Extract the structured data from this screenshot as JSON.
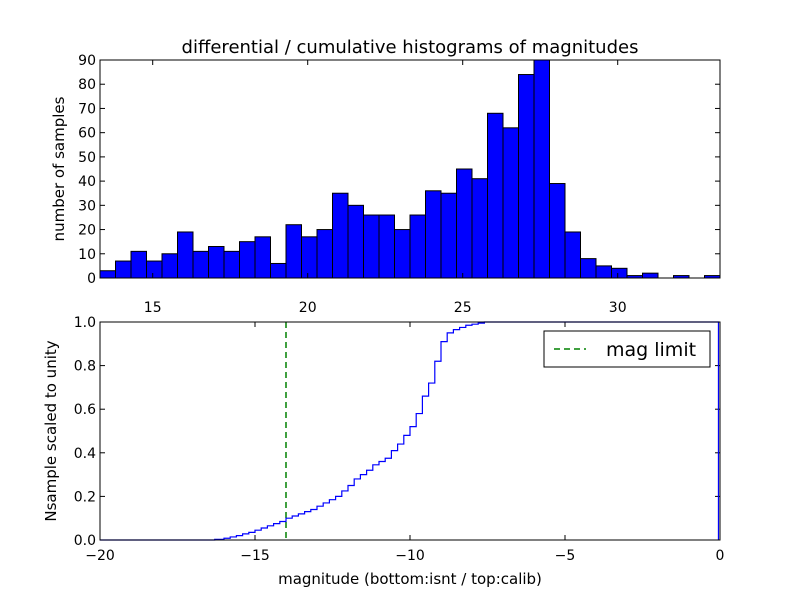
{
  "chart_data": [
    {
      "type": "bar",
      "title": "differential / cumulative histograms of magnitudes",
      "ylabel": "number of samples",
      "xlim": [
        13.3,
        33.3
      ],
      "ylim": [
        0,
        90
      ],
      "xticks": [
        15,
        20,
        25,
        30
      ],
      "yticks": [
        0,
        10,
        20,
        30,
        40,
        50,
        60,
        70,
        80,
        90
      ],
      "bar_color": "#0000ff",
      "bin_width": 0.5,
      "bin_start": 13.3,
      "values": [
        3,
        7,
        11,
        7,
        10,
        19,
        11,
        13,
        11,
        15,
        17,
        6,
        22,
        17,
        20,
        35,
        30,
        26,
        26,
        20,
        26,
        36,
        35,
        45,
        41,
        68,
        62,
        84,
        90,
        39,
        19,
        8,
        5,
        4,
        1,
        2,
        0,
        1,
        0,
        1
      ]
    },
    {
      "type": "line",
      "ylabel": "Nsample scaled to unity",
      "xlabel": "magnitude (bottom:isnt / top:calib)",
      "xlim": [
        -20,
        0
      ],
      "ylim": [
        0,
        1
      ],
      "xticks": [
        -20,
        -15,
        -10,
        -5,
        0
      ],
      "yticks": [
        0.0,
        0.2,
        0.4,
        0.6,
        0.8,
        1.0
      ],
      "line_color": "#0000ff",
      "mag_limit": -14.0,
      "mag_limit_color": "#008000",
      "legend": {
        "label": "mag limit",
        "position": "top-right"
      },
      "series": [
        {
          "x": [
            -20.0,
            -16.8,
            -16.3,
            -16.0,
            -15.8,
            -15.6,
            -15.4,
            -15.2,
            -15.0,
            -14.8,
            -14.6,
            -14.4,
            -14.2,
            -14.0,
            -13.8,
            -13.6,
            -13.4,
            -13.2,
            -13.0,
            -12.8,
            -12.6,
            -12.4,
            -12.2,
            -12.0,
            -11.8,
            -11.6,
            -11.4,
            -11.2,
            -11.0,
            -10.8,
            -10.6,
            -10.4,
            -10.2,
            -10.0,
            -9.8,
            -9.6,
            -9.4,
            -9.2,
            -9.0,
            -8.8,
            -8.6,
            -8.4,
            -8.2,
            -8.0,
            -7.8,
            -7.6,
            -7.4,
            -7.2,
            -0.05,
            -0.05
          ],
          "y": [
            0.0,
            0.0,
            0.003,
            0.008,
            0.014,
            0.02,
            0.028,
            0.035,
            0.045,
            0.055,
            0.065,
            0.075,
            0.085,
            0.1,
            0.11,
            0.12,
            0.13,
            0.14,
            0.155,
            0.17,
            0.185,
            0.2,
            0.225,
            0.25,
            0.28,
            0.3,
            0.32,
            0.345,
            0.36,
            0.375,
            0.41,
            0.44,
            0.48,
            0.52,
            0.58,
            0.66,
            0.72,
            0.82,
            0.91,
            0.95,
            0.965,
            0.975,
            0.985,
            0.99,
            0.995,
            1.0,
            1.0,
            1.0,
            1.0,
            0.0
          ]
        }
      ]
    }
  ]
}
